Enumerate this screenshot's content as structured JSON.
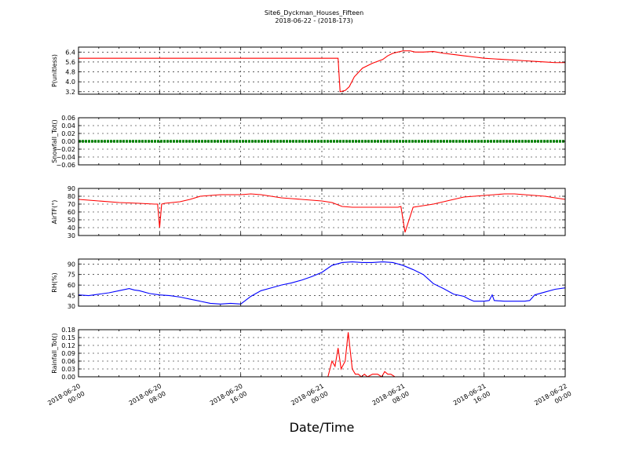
{
  "title": "Site6_Dyckman_Houses_Fifteen",
  "subtitle": "2018-06-22 - (2018-173)",
  "xlabel": "Date/Time",
  "x_ticks": [
    {
      "t": 0,
      "l1": "2018-06-20",
      "l2": "00:00"
    },
    {
      "t": 8,
      "l1": "2018-06-20",
      "l2": "08:00"
    },
    {
      "t": 16,
      "l1": "2018-06-20",
      "l2": "16:00"
    },
    {
      "t": 24,
      "l1": "2018-06-21",
      "l2": "00:00"
    },
    {
      "t": 32,
      "l1": "2018-06-21",
      "l2": "08:00"
    },
    {
      "t": 40,
      "l1": "2018-06-21",
      "l2": "16:00"
    },
    {
      "t": 48,
      "l1": "2018-06-22",
      "l2": "00:00"
    }
  ],
  "colors": {
    "red": "#ff0000",
    "green": "#008000",
    "blue": "#0000ff",
    "grid": "#000000"
  },
  "chart_data": [
    {
      "type": "line",
      "ylabel": "P(unitless)",
      "ylim": [
        3.0,
        6.8
      ],
      "yticks": [
        3.2,
        4.0,
        4.8,
        5.6,
        6.4
      ],
      "ytick_labels": [
        "3.2",
        "4.0",
        "4.8",
        "5.6",
        "6.4"
      ],
      "grid": true,
      "series": [
        {
          "color": "#ff0000",
          "x": [
            0,
            25.6,
            25.8,
            26.3,
            26.7,
            27.2,
            28.0,
            29.0,
            30.0,
            30.5,
            31.0,
            32.0,
            32.7,
            33.2,
            34.0,
            35.0,
            36.0,
            37.0,
            38.0,
            39.0,
            40.0,
            41.0,
            42.0,
            43.0,
            44.0,
            45.0,
            46.0,
            47.0,
            48.0
          ],
          "y": [
            5.9,
            5.9,
            3.2,
            3.3,
            3.6,
            4.4,
            5.1,
            5.5,
            5.8,
            6.1,
            6.3,
            6.5,
            6.5,
            6.4,
            6.4,
            6.45,
            6.3,
            6.2,
            6.1,
            6.0,
            5.9,
            5.85,
            5.8,
            5.75,
            5.7,
            5.65,
            5.6,
            5.55,
            5.55
          ]
        }
      ]
    },
    {
      "type": "line",
      "ylabel": "Snowfall_Tot()",
      "ylim": [
        -0.06,
        0.06
      ],
      "yticks": [
        -0.06,
        -0.04,
        -0.02,
        0.0,
        0.02,
        0.04,
        0.06
      ],
      "ytick_labels": [
        "−0.06",
        "−0.04",
        "−0.02",
        "0.00",
        "0.02",
        "0.04",
        "0.06"
      ],
      "grid": true,
      "series": [
        {
          "color": "#008000",
          "x": [
            0,
            48
          ],
          "y": [
            0,
            0
          ]
        }
      ]
    },
    {
      "type": "line",
      "ylabel": "AirTF(°)",
      "ylim": [
        30,
        90
      ],
      "yticks": [
        30,
        40,
        50,
        60,
        70,
        80,
        90
      ],
      "ytick_labels": [
        "30",
        "40",
        "50",
        "60",
        "70",
        "80",
        "90"
      ],
      "grid": true,
      "series": [
        {
          "color": "#ff0000",
          "x": [
            0,
            2,
            4,
            6,
            7.5,
            7.8,
            8.0,
            8.2,
            8.5,
            10,
            11,
            12,
            14,
            16,
            17,
            18,
            19,
            20,
            21,
            22,
            23,
            24,
            25,
            26,
            27,
            28,
            30,
            31,
            31.5,
            31.8,
            32.2,
            33,
            34,
            35,
            36,
            37,
            38,
            39,
            40,
            41,
            42,
            43,
            44,
            45,
            46,
            47,
            48
          ],
          "y": [
            76,
            74,
            72,
            71,
            70,
            70,
            40,
            70,
            71,
            73,
            76,
            80,
            82,
            82,
            83,
            82,
            80,
            78,
            77,
            76,
            75,
            74,
            72,
            67,
            66,
            66,
            66,
            66,
            66,
            67,
            34,
            66,
            68,
            70,
            73,
            76,
            79,
            80,
            81,
            82,
            83,
            83,
            82,
            81,
            80,
            78,
            76
          ]
        }
      ]
    },
    {
      "type": "line",
      "ylabel": "RH(%)",
      "ylim": [
        30,
        97
      ],
      "yticks": [
        30,
        45,
        60,
        75,
        90
      ],
      "ytick_labels": [
        "30",
        "45",
        "60",
        "75",
        "90"
      ],
      "grid": true,
      "series": [
        {
          "color": "#0000ff",
          "x": [
            0,
            1,
            2,
            3,
            4,
            5,
            5.5,
            6,
            7,
            8,
            9,
            10,
            11,
            12,
            13,
            14,
            15,
            16,
            17,
            18,
            19,
            20,
            21,
            22,
            23,
            24,
            25,
            26,
            27,
            28,
            29,
            30,
            31,
            32,
            33,
            34,
            35,
            36,
            37,
            38,
            38.5,
            39,
            40,
            40.5,
            40.8,
            41,
            42,
            43,
            44,
            44.5,
            45,
            46,
            47,
            48
          ],
          "y": [
            46,
            45,
            47,
            49,
            52,
            55,
            53,
            52,
            48,
            46,
            45,
            43,
            40,
            37,
            34,
            33,
            34,
            33,
            44,
            52,
            56,
            60,
            63,
            67,
            72,
            78,
            88,
            92,
            93,
            92,
            92,
            93,
            92,
            88,
            82,
            75,
            62,
            55,
            47,
            44,
            40,
            37,
            37,
            38,
            46,
            38,
            37,
            37,
            37,
            38,
            46,
            50,
            54,
            56
          ]
        }
      ]
    },
    {
      "type": "line",
      "ylabel": "Rainfall_Tot()",
      "ylim": [
        0,
        0.18
      ],
      "yticks": [
        0.0,
        0.03,
        0.06,
        0.09,
        0.12,
        0.15,
        0.18
      ],
      "ytick_labels": [
        "0.00",
        "0.03",
        "0.06",
        "0.09",
        "0.12",
        "0.15",
        "0.18"
      ],
      "grid": true,
      "series": [
        {
          "color": "#ff0000",
          "x": [
            0,
            24.6,
            25.0,
            25.3,
            25.6,
            25.9,
            26.3,
            26.6,
            27.0,
            27.3,
            27.6,
            27.9,
            28.2,
            28.5,
            29.0,
            29.5,
            29.9,
            30.2,
            30.5,
            30.8,
            31.2,
            32.0,
            48
          ],
          "y": [
            0,
            0,
            0.06,
            0.04,
            0.11,
            0.03,
            0.06,
            0.17,
            0.03,
            0.01,
            0.01,
            0.0,
            0.01,
            0.0,
            0.01,
            0.01,
            0.0,
            0.02,
            0.01,
            0.01,
            0.0,
            0.0,
            0.0
          ]
        }
      ]
    }
  ]
}
